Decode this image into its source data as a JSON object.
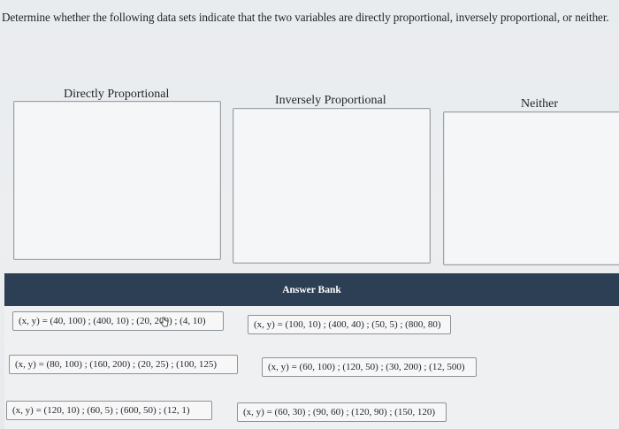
{
  "question": {
    "text": "Determine whether the following data sets indicate that the two variables are directly proportional, inversely proportional, or neither."
  },
  "categories": [
    {
      "label": "Directly Proportional"
    },
    {
      "label": "Inversely Proportional"
    },
    {
      "label": "Neither"
    }
  ],
  "answer_bank": {
    "title": "Answer Bank",
    "items": [
      {
        "text": "(x, y) = (40, 100) ; (400, 10) ; (20, 200) ; (4, 10)"
      },
      {
        "text": "(x, y) = (100, 10) ; (400, 40) ; (50, 5) ; (800, 80)"
      },
      {
        "text": "(x, y) = (80, 100) ; (160, 200) ; (20, 25) ; (100, 125)"
      },
      {
        "text": "(x, y) = (60, 100) ; (120, 50) ; (30, 200) ; (12, 500)"
      },
      {
        "text": "(x, y) = (120, 10) ; (60, 5) ; (600, 50) ; (12, 1)"
      },
      {
        "text": "(x, y) = (60, 30) ; (90, 60) ; (120, 90) ; (150, 120)"
      }
    ]
  }
}
